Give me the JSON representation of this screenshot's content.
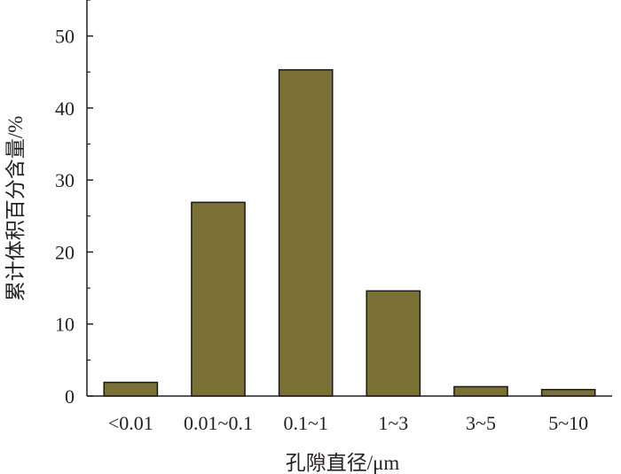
{
  "chart_data": {
    "type": "bar",
    "categories": [
      "<0.01",
      "0.01~0.1",
      "0.1~1",
      "1~3",
      "3~5",
      "5~10"
    ],
    "values": [
      1.9,
      26.9,
      45.3,
      14.6,
      1.3,
      0.9
    ],
    "xlabel": "孔隙直径/μm",
    "ylabel": "累计体积百分含量/%",
    "ylim": [
      0,
      55
    ],
    "yticks": [
      0,
      10,
      20,
      30,
      40,
      50
    ],
    "grid": false,
    "colors": {
      "bar_fill": "#7b7135",
      "bar_stroke": "#1a1a1a",
      "axis": "#231f20"
    }
  }
}
